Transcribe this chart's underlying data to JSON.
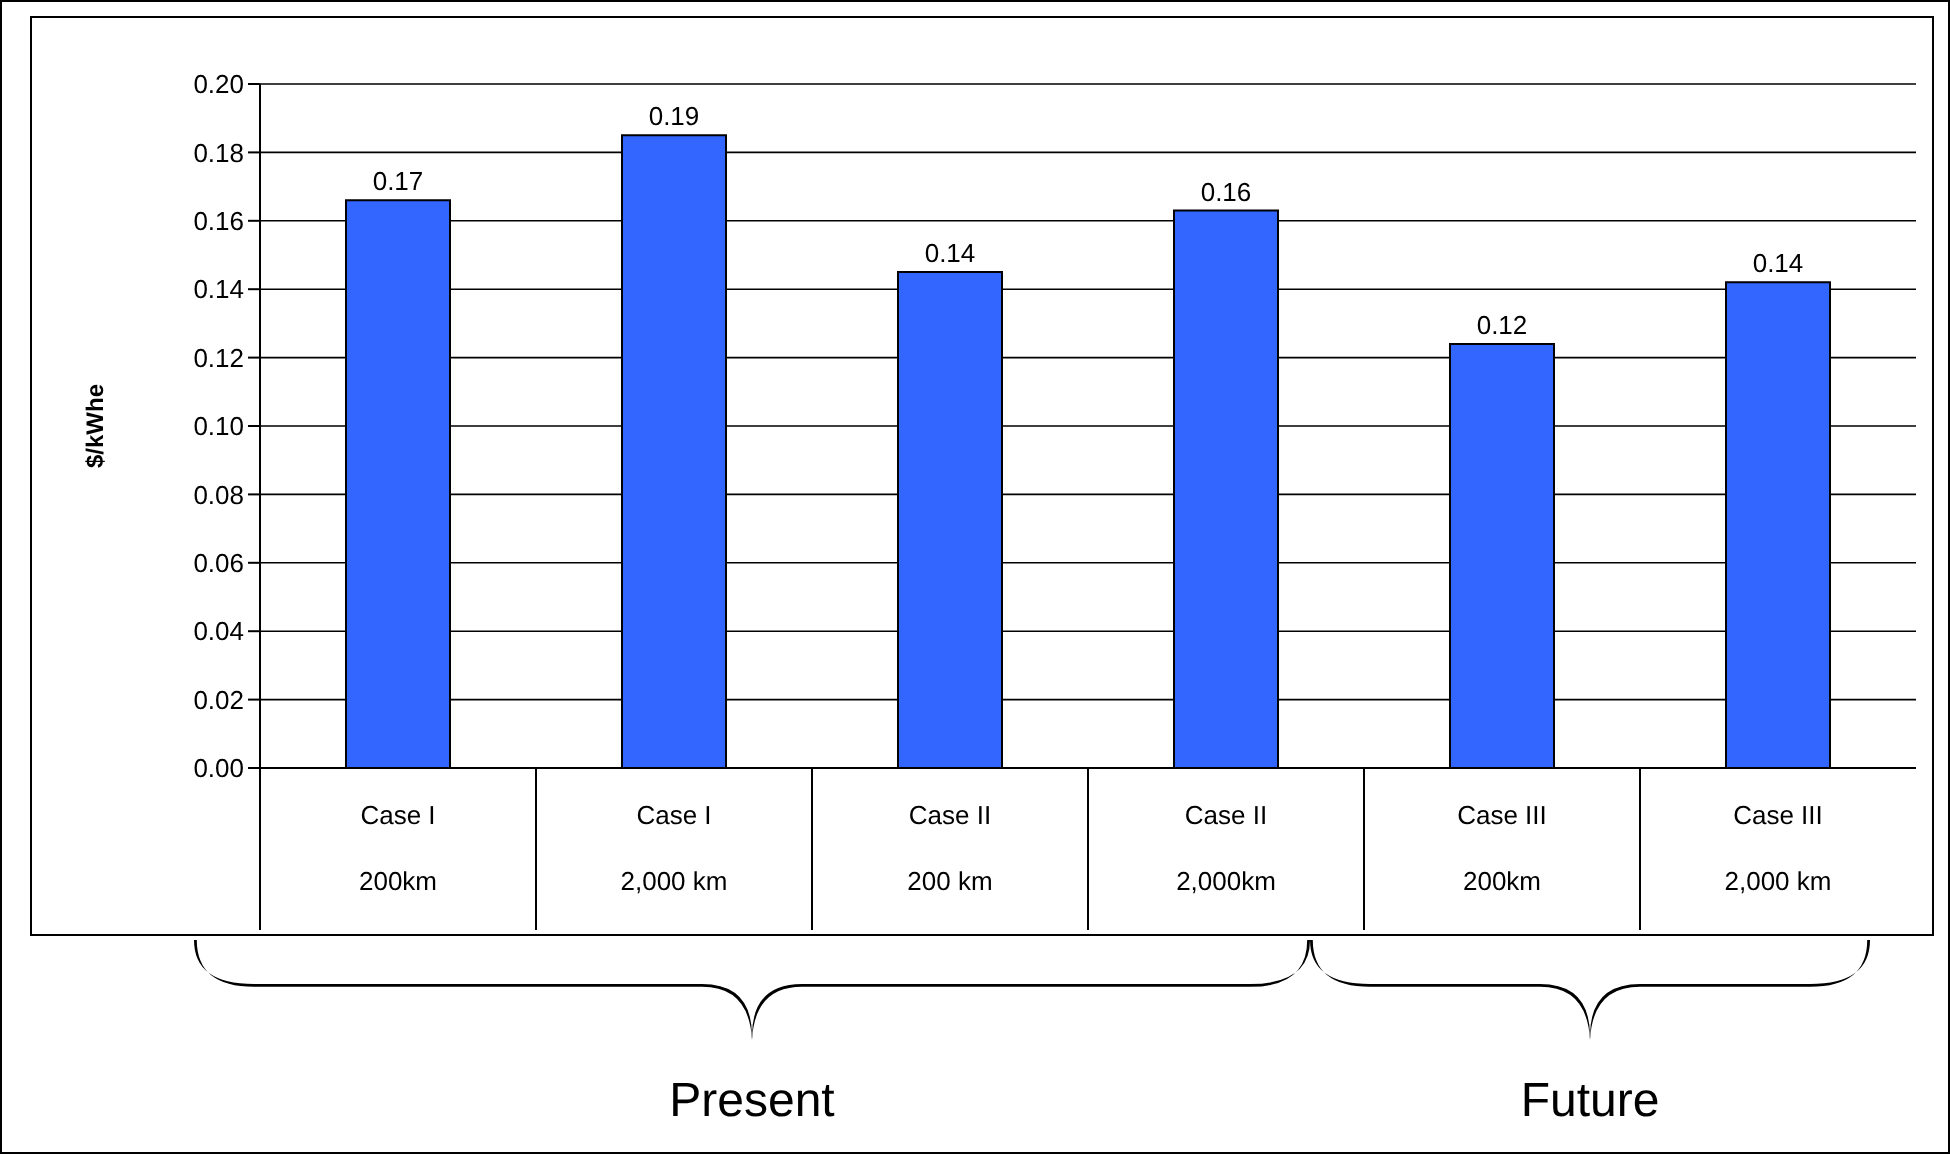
{
  "chart_data": {
    "type": "bar",
    "ylabel": "$/kWhe",
    "categories": [
      "Case I\n200km",
      "Case I\n2,000 km",
      "Case II\n200 km",
      "Case II\n2,000km",
      "Case III\n200km",
      "Case III\n2,000 km"
    ],
    "values": [
      0.166,
      0.185,
      0.145,
      0.163,
      0.124,
      0.142
    ],
    "value_labels": [
      "0.17",
      "0.19",
      "0.14",
      "0.16",
      "0.12",
      "0.14"
    ],
    "color": "#3366ff",
    "ylim": [
      0,
      0.2
    ],
    "yticks": [
      {
        "value": 0,
        "label": "0.00"
      },
      {
        "value": 0.02,
        "label": "0.02"
      },
      {
        "value": 0.04,
        "label": "0.04"
      },
      {
        "value": 0.06,
        "label": "0.06"
      },
      {
        "value": 0.08,
        "label": "0.08"
      },
      {
        "value": 0.1,
        "label": "0.10"
      },
      {
        "value": 0.12,
        "label": "0.12"
      },
      {
        "value": 0.14,
        "label": "0.14"
      },
      {
        "value": 0.16,
        "label": "0.16"
      },
      {
        "value": 0.18,
        "label": "0.18"
      },
      {
        "value": 0.2,
        "label": "0.20"
      }
    ],
    "grid": "y",
    "annotations": [
      "Present",
      "Future"
    ]
  }
}
